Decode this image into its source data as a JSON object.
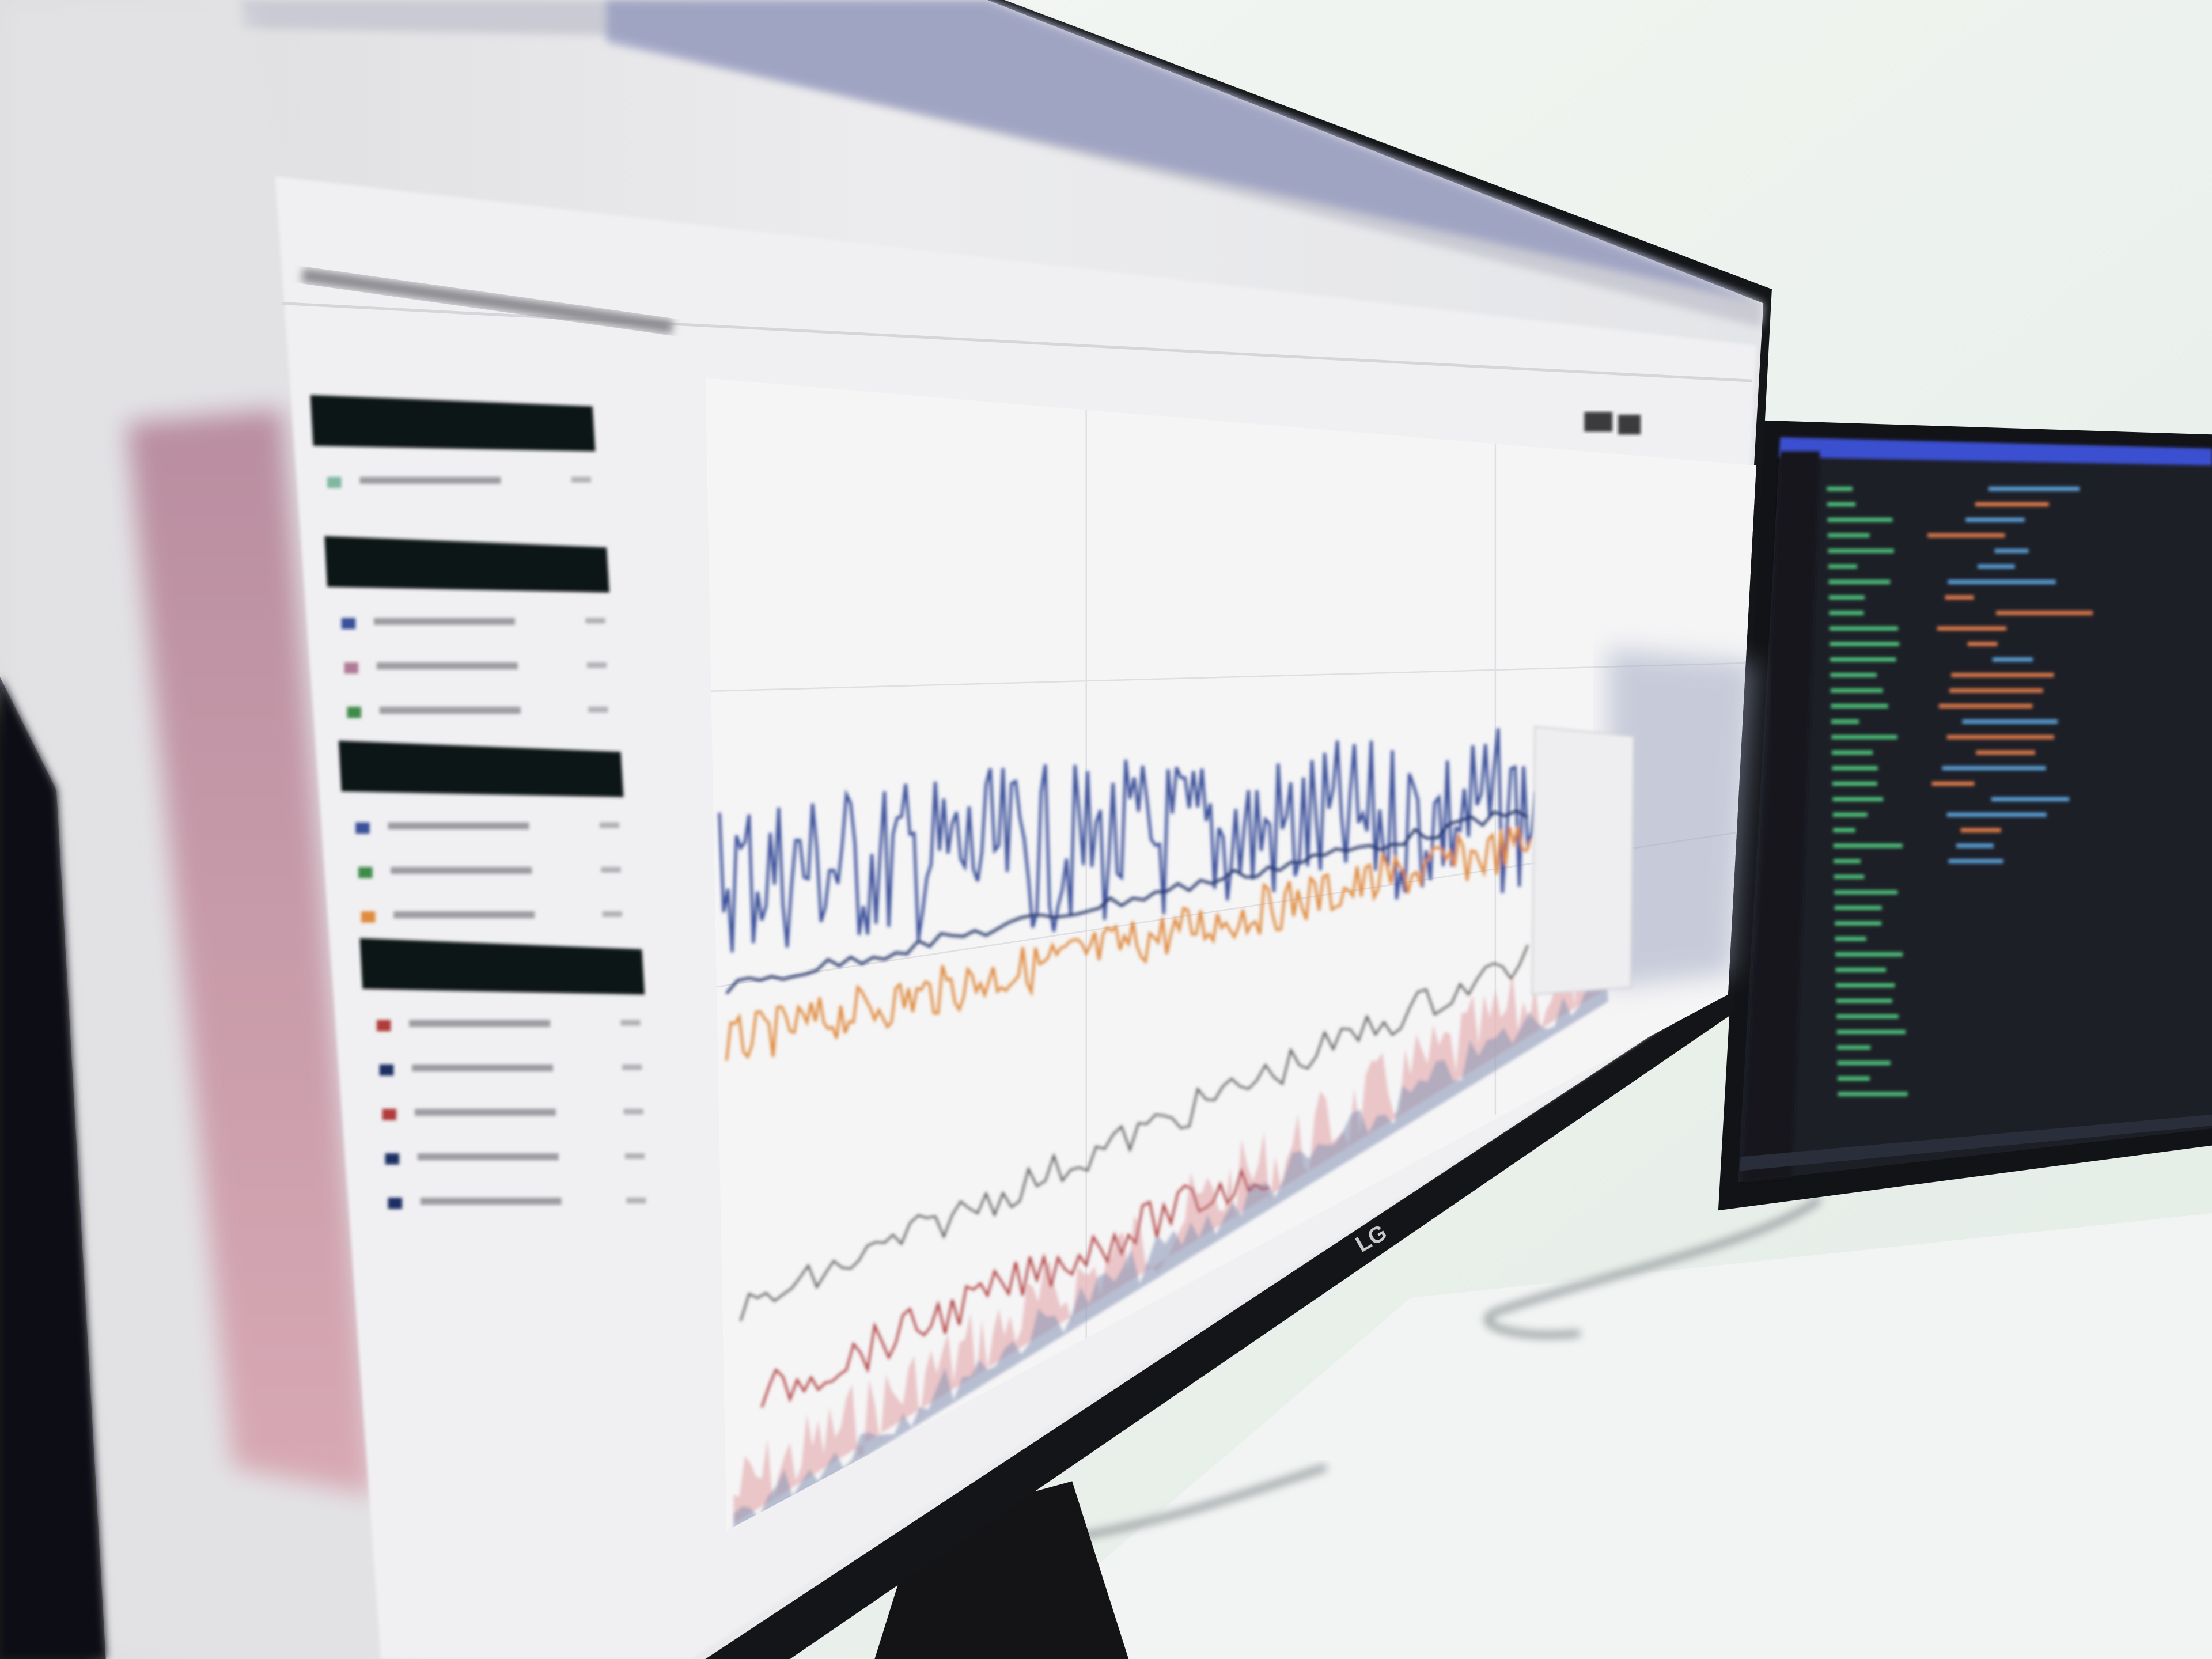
{
  "monitor": {
    "brand_logo": "LG"
  },
  "colors": {
    "wall": "#eef3ee",
    "desk": "#f3f5f4",
    "bezel": "#16171a",
    "screen_bg": "#e6e6e8",
    "panel_bg": "#f1f1f2",
    "sidebar_header": "#111214",
    "series_blue": "#3a4f9a",
    "series_orange": "#e08a3c",
    "series_navy": "#1f2d63",
    "area_pink": "#e7b6b8",
    "area_slate": "#8e9ab8",
    "series_red": "#b03a3a",
    "series_green": "#3d8a4a",
    "editor_bg": "#1d1f27",
    "editor_accent": "#3b4fd1",
    "code_green": "#4ec27a"
  }
}
